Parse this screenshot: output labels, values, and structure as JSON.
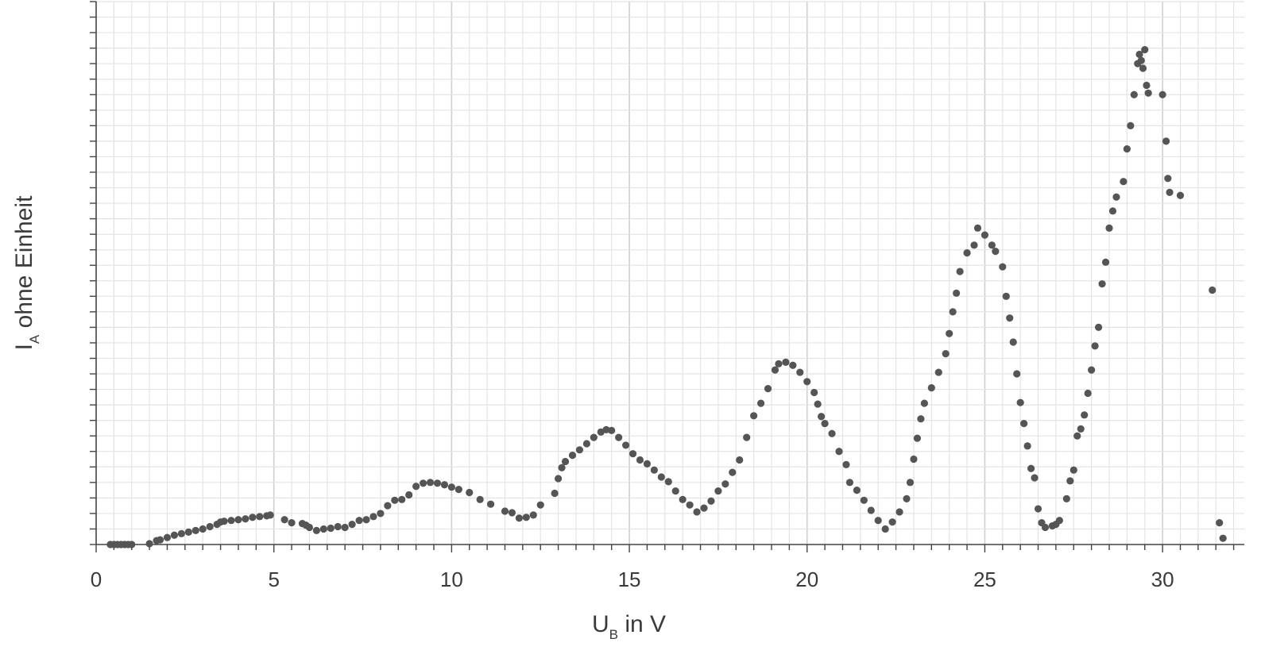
{
  "chart_data": {
    "type": "scatter",
    "xlabel": {
      "main": "U",
      "sub": "B",
      "rest": " in V"
    },
    "ylabel": {
      "main": "I",
      "sub": "A",
      "rest": " ohne Einheit"
    },
    "xlim": [
      0,
      32.3
    ],
    "ylim": [
      0,
      35
    ],
    "x_ticks": [
      "0",
      "5",
      "10",
      "15",
      "20",
      "25",
      "30"
    ],
    "x_tick_values": [
      0,
      5,
      10,
      15,
      20,
      25,
      30
    ],
    "grid": true,
    "point_color": "#555555",
    "grid_color": "#e4e4e4",
    "major_grid_color": "#cfcfcf",
    "axis_color": "#444444",
    "series": [
      {
        "points": [
          [
            0.4,
            0
          ],
          [
            0.5,
            0
          ],
          [
            0.6,
            0
          ],
          [
            0.7,
            0
          ],
          [
            0.8,
            0
          ],
          [
            0.9,
            0
          ],
          [
            1.0,
            0
          ],
          [
            1.5,
            0.05
          ],
          [
            1.7,
            0.25
          ],
          [
            1.8,
            0.3
          ],
          [
            2.0,
            0.45
          ],
          [
            2.2,
            0.6
          ],
          [
            2.4,
            0.7
          ],
          [
            2.6,
            0.8
          ],
          [
            2.8,
            0.9
          ],
          [
            3.0,
            1.0
          ],
          [
            3.2,
            1.15
          ],
          [
            3.4,
            1.3
          ],
          [
            3.5,
            1.45
          ],
          [
            3.6,
            1.5
          ],
          [
            3.8,
            1.55
          ],
          [
            4.0,
            1.6
          ],
          [
            4.2,
            1.65
          ],
          [
            4.4,
            1.75
          ],
          [
            4.6,
            1.8
          ],
          [
            4.8,
            1.85
          ],
          [
            4.9,
            1.9
          ],
          [
            5.3,
            1.6
          ],
          [
            5.5,
            1.4
          ],
          [
            5.8,
            1.35
          ],
          [
            5.9,
            1.25
          ],
          [
            6.0,
            1.1
          ],
          [
            6.2,
            0.9
          ],
          [
            6.4,
            1.0
          ],
          [
            6.6,
            1.05
          ],
          [
            6.8,
            1.15
          ],
          [
            7.0,
            1.1
          ],
          [
            7.2,
            1.3
          ],
          [
            7.4,
            1.55
          ],
          [
            7.6,
            1.6
          ],
          [
            7.8,
            1.8
          ],
          [
            8.0,
            2.0
          ],
          [
            8.2,
            2.5
          ],
          [
            8.4,
            2.85
          ],
          [
            8.6,
            2.9
          ],
          [
            8.8,
            3.2
          ],
          [
            9.0,
            3.75
          ],
          [
            9.2,
            3.95
          ],
          [
            9.4,
            4.0
          ],
          [
            9.6,
            3.95
          ],
          [
            9.8,
            3.85
          ],
          [
            10.0,
            3.7
          ],
          [
            10.2,
            3.55
          ],
          [
            10.5,
            3.35
          ],
          [
            10.8,
            2.9
          ],
          [
            11.1,
            2.6
          ],
          [
            11.5,
            2.15
          ],
          [
            11.7,
            2.05
          ],
          [
            11.9,
            1.7
          ],
          [
            12.1,
            1.75
          ],
          [
            12.3,
            1.9
          ],
          [
            12.5,
            2.55
          ],
          [
            12.9,
            3.3
          ],
          [
            13.0,
            4.25
          ],
          [
            13.1,
            4.95
          ],
          [
            13.2,
            5.35
          ],
          [
            13.4,
            5.75
          ],
          [
            13.6,
            6.1
          ],
          [
            13.8,
            6.5
          ],
          [
            14.0,
            6.9
          ],
          [
            14.2,
            7.25
          ],
          [
            14.35,
            7.4
          ],
          [
            14.5,
            7.35
          ],
          [
            14.7,
            6.9
          ],
          [
            14.9,
            6.4
          ],
          [
            15.1,
            5.85
          ],
          [
            15.3,
            5.45
          ],
          [
            15.5,
            5.2
          ],
          [
            15.7,
            4.8
          ],
          [
            15.9,
            4.35
          ],
          [
            16.1,
            4.05
          ],
          [
            16.3,
            3.45
          ],
          [
            16.5,
            2.9
          ],
          [
            16.7,
            2.55
          ],
          [
            16.9,
            2.1
          ],
          [
            17.1,
            2.35
          ],
          [
            17.3,
            2.8
          ],
          [
            17.5,
            3.45
          ],
          [
            17.7,
            3.9
          ],
          [
            17.9,
            4.65
          ],
          [
            18.1,
            5.45
          ],
          [
            18.3,
            6.9
          ],
          [
            18.5,
            8.3
          ],
          [
            18.7,
            9.1
          ],
          [
            18.9,
            10.05
          ],
          [
            19.1,
            11.25
          ],
          [
            19.2,
            11.65
          ],
          [
            19.4,
            11.75
          ],
          [
            19.6,
            11.55
          ],
          [
            19.8,
            11.1
          ],
          [
            20.0,
            10.5
          ],
          [
            20.2,
            9.8
          ],
          [
            20.3,
            9.05
          ],
          [
            20.4,
            8.25
          ],
          [
            20.5,
            7.8
          ],
          [
            20.7,
            7.15
          ],
          [
            20.9,
            6.0
          ],
          [
            21.1,
            5.15
          ],
          [
            21.2,
            4.0
          ],
          [
            21.4,
            3.5
          ],
          [
            21.6,
            2.85
          ],
          [
            21.8,
            2.2
          ],
          [
            22.0,
            1.55
          ],
          [
            22.2,
            1.0
          ],
          [
            22.4,
            1.45
          ],
          [
            22.6,
            2.1
          ],
          [
            22.8,
            2.95
          ],
          [
            22.9,
            4.0
          ],
          [
            23.0,
            5.5
          ],
          [
            23.1,
            6.85
          ],
          [
            23.2,
            8.1
          ],
          [
            23.3,
            9.1
          ],
          [
            23.5,
            10.1
          ],
          [
            23.7,
            11.1
          ],
          [
            23.9,
            12.3
          ],
          [
            24.0,
            13.6
          ],
          [
            24.1,
            15.0
          ],
          [
            24.2,
            16.2
          ],
          [
            24.3,
            17.6
          ],
          [
            24.5,
            18.8
          ],
          [
            24.7,
            19.3
          ],
          [
            24.8,
            20.4
          ],
          [
            25.0,
            19.95
          ],
          [
            25.2,
            19.3
          ],
          [
            25.3,
            18.9
          ],
          [
            25.5,
            17.9
          ],
          [
            25.6,
            16.0
          ],
          [
            25.7,
            14.6
          ],
          [
            25.8,
            13.05
          ],
          [
            25.9,
            11.0
          ],
          [
            26.0,
            9.15
          ],
          [
            26.1,
            7.8
          ],
          [
            26.2,
            6.35
          ],
          [
            26.3,
            4.9
          ],
          [
            26.4,
            4.3
          ],
          [
            26.5,
            2.3
          ],
          [
            26.6,
            1.4
          ],
          [
            26.7,
            1.1
          ],
          [
            26.9,
            1.2
          ],
          [
            27.0,
            1.3
          ],
          [
            27.1,
            1.55
          ],
          [
            27.3,
            2.95
          ],
          [
            27.4,
            4.1
          ],
          [
            27.5,
            4.8
          ],
          [
            27.6,
            7.0
          ],
          [
            27.7,
            7.45
          ],
          [
            27.8,
            8.35
          ],
          [
            27.9,
            9.75
          ],
          [
            28.0,
            11.25
          ],
          [
            28.1,
            12.8
          ],
          [
            28.2,
            14.0
          ],
          [
            28.3,
            16.8
          ],
          [
            28.4,
            18.2
          ],
          [
            28.5,
            20.4
          ],
          [
            28.6,
            21.5
          ],
          [
            28.7,
            22.4
          ],
          [
            28.9,
            23.4
          ],
          [
            29.0,
            25.5
          ],
          [
            29.1,
            27.0
          ],
          [
            29.2,
            29.0
          ],
          [
            29.3,
            31.0
          ],
          [
            29.35,
            31.6
          ],
          [
            29.4,
            31.2
          ],
          [
            29.45,
            30.7
          ],
          [
            29.5,
            31.9
          ],
          [
            29.55,
            29.6
          ],
          [
            29.6,
            29.1
          ],
          [
            30.0,
            29.0
          ],
          [
            30.1,
            26.0
          ],
          [
            30.15,
            23.6
          ],
          [
            30.2,
            22.7
          ],
          [
            30.5,
            22.5
          ],
          [
            31.4,
            16.4
          ],
          [
            31.6,
            1.4
          ],
          [
            31.7,
            0.4
          ]
        ]
      }
    ]
  }
}
